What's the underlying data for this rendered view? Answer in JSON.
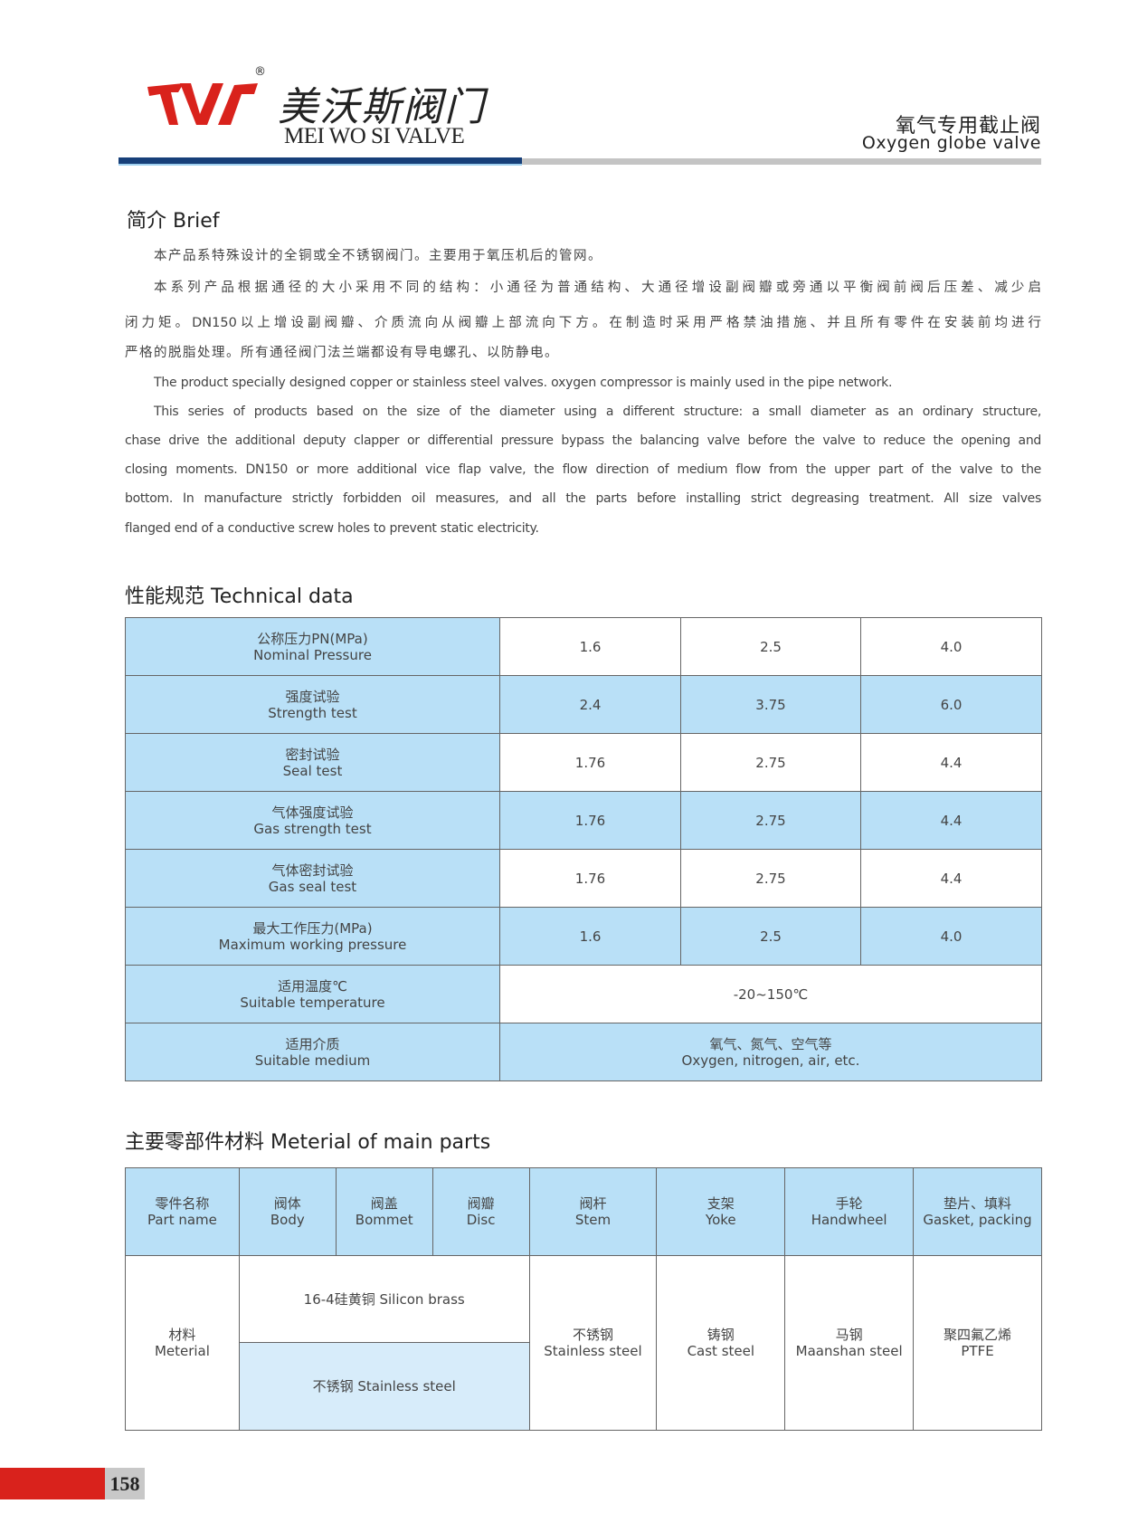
{
  "header": {
    "logo_cn": "美沃斯阀门",
    "logo_en": "MEI WO SI VALVE",
    "reg": "®",
    "title_cn": "氧气专用截止阀",
    "title_en": "Oxygen globe valve"
  },
  "brief": {
    "heading": "简介 Brief",
    "cn_lines": [
      "本产品系特殊设计的全铜或全不锈钢阀门。主要用于氧压机后的管网。",
      "本系列产品根据通径的大小采用不同的结构：小通径为普通结构、大通径增设副阀瓣或旁通以平衡阀前阀后压差、减少启",
      "闭力矩。DN150以上增设副阀瓣、介质流向从阀瓣上部流向下方。在制造时采用严格禁油措施、并且所有零件在安装前均进行",
      "严格的脱脂处理。所有通径阀门法兰端都设有导电螺孔、以防静电。"
    ],
    "en_lines": [
      "The product specially designed copper or stainless steel valves. oxygen compressor is mainly used in the pipe network.",
      "This series of products based on the size of the diameter using a different structure: a small diameter as an ordinary structure,",
      "chase drive the additional deputy clapper or differential pressure bypass the balancing valve before the valve to reduce the opening and",
      "closing moments. DN150 or more additional vice flap valve, the flow direction of medium flow from the upper part of the valve to the",
      "bottom. In manufacture strictly forbidden oil measures, and all the parts before installing strict degreasing treatment. All size valves",
      "flanged end of a conductive screw holes to prevent static electricity."
    ]
  },
  "tech": {
    "heading": "性能规范 Technical data",
    "rows": [
      {
        "cn": "公称压力PN(MPa)",
        "en": "Nominal Pressure",
        "v": [
          "1.6",
          "2.5",
          "4.0"
        ]
      },
      {
        "cn": "强度试验",
        "en": "Strength test",
        "v": [
          "2.4",
          "3.75",
          "6.0"
        ]
      },
      {
        "cn": "密封试验",
        "en": "Seal test",
        "v": [
          "1.76",
          "2.75",
          "4.4"
        ]
      },
      {
        "cn": "气体强度试验",
        "en": "Gas strength test",
        "v": [
          "1.76",
          "2.75",
          "4.4"
        ]
      },
      {
        "cn": "气体密封试验",
        "en": "Gas seal test",
        "v": [
          "1.76",
          "2.75",
          "4.4"
        ]
      },
      {
        "cn": "最大工作压力(MPa)",
        "en": "Maximum working pressure",
        "v": [
          "1.6",
          "2.5",
          "4.0"
        ]
      }
    ],
    "temp": {
      "cn": "适用温度℃",
      "en": "Suitable temperature",
      "v": "-20~150℃"
    },
    "medium": {
      "cn": "适用介质",
      "en": "Suitable medium",
      "v_cn": "氧气、氮气、空气等",
      "v_en": "Oxygen, nitrogen, air, etc."
    }
  },
  "parts": {
    "heading": "主要零部件材料  Meterial of main parts",
    "headers": [
      {
        "cn": "零件名称",
        "en": "Part name"
      },
      {
        "cn": "阀体",
        "en": "Body"
      },
      {
        "cn": "阀盖",
        "en": "Bommet"
      },
      {
        "cn": "阀瓣",
        "en": "Disc"
      },
      {
        "cn": "阀杆",
        "en": "Stem"
      },
      {
        "cn": "支架",
        "en": "Yoke"
      },
      {
        "cn": "手轮",
        "en": "Handwheel"
      },
      {
        "cn": "垫片、填料",
        "en": "Gasket, packing"
      }
    ],
    "row_label": {
      "cn": "材料",
      "en": "Meterial"
    },
    "brass": "16-4硅黄铜 Silicon brass",
    "stainless_alt": "不锈钢 Stainless steel",
    "stem": {
      "cn": "不锈钢",
      "en": "Stainless steel"
    },
    "yoke": {
      "cn": "铸钢",
      "en": "Cast steel"
    },
    "handwheel": {
      "cn": "马钢",
      "en": "Maanshan steel"
    },
    "gasket": {
      "cn": "聚四氟乙烯",
      "en": "PTFE"
    }
  },
  "page_number": "158"
}
